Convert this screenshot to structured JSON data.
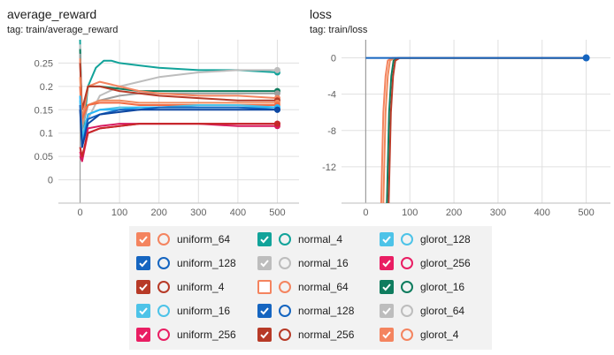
{
  "panels": {
    "reward": {
      "title": "average_reward",
      "tag": "tag: train/average_reward"
    },
    "loss": {
      "title": "loss",
      "tag": "tag: train/loss"
    }
  },
  "chart_data": [
    {
      "type": "line",
      "title": "average_reward",
      "subtitle": "tag: train/average_reward",
      "xlim": [
        -55,
        555
      ],
      "ylim": [
        -0.05,
        0.3
      ],
      "xticks": [
        0,
        100,
        200,
        300,
        400,
        500
      ],
      "yticks": [
        0,
        0.05,
        0.1,
        0.15,
        0.2,
        0.25
      ],
      "ytick_labels": [
        "0",
        "0.05",
        "0.1",
        "0.15",
        "0.2",
        "0.25"
      ],
      "grid": true,
      "series": [
        {
          "name": "normal_4",
          "color": "#12a39a",
          "x": [
            0,
            5,
            20,
            40,
            60,
            80,
            100,
            150,
            200,
            300,
            400,
            500
          ],
          "y": [
            0.3,
            0.08,
            0.2,
            0.24,
            0.255,
            0.255,
            0.25,
            0.245,
            0.24,
            0.235,
            0.235,
            0.23
          ]
        },
        {
          "name": "normal_16",
          "color": "#bdbdbd",
          "x": [
            0,
            5,
            20,
            50,
            100,
            150,
            200,
            300,
            400,
            500
          ],
          "y": [
            0.29,
            0.1,
            0.13,
            0.18,
            0.2,
            0.21,
            0.22,
            0.23,
            0.235,
            0.235
          ]
        },
        {
          "name": "glorot_16",
          "color": "#0f7c5e",
          "x": [
            0,
            5,
            20,
            50,
            100,
            150,
            200,
            300,
            400,
            500
          ],
          "y": [
            0.28,
            0.12,
            0.2,
            0.2,
            0.195,
            0.19,
            0.19,
            0.19,
            0.19,
            0.19
          ]
        },
        {
          "name": "glorot_64",
          "color": "#9e9e9e",
          "x": [
            0,
            5,
            20,
            50,
            100,
            150,
            200,
            300,
            400,
            500
          ],
          "y": [
            0.27,
            0.11,
            0.16,
            0.17,
            0.18,
            0.185,
            0.185,
            0.185,
            0.185,
            0.185
          ]
        },
        {
          "name": "uniform_64",
          "color": "#f4845f",
          "x": [
            0,
            5,
            20,
            50,
            100,
            150,
            200,
            300,
            400,
            500
          ],
          "y": [
            0.26,
            0.12,
            0.2,
            0.21,
            0.2,
            0.19,
            0.185,
            0.18,
            0.18,
            0.175
          ]
        },
        {
          "name": "uniform_4",
          "color": "#b73a27",
          "x": [
            0,
            5,
            20,
            50,
            100,
            150,
            200,
            300,
            400,
            500
          ],
          "y": [
            0.25,
            0.15,
            0.2,
            0.2,
            0.19,
            0.185,
            0.18,
            0.175,
            0.17,
            0.17
          ]
        },
        {
          "name": "normal_64",
          "color": "#f08a5d",
          "x": [
            0,
            5,
            20,
            50,
            100,
            150,
            200,
            300,
            400,
            500
          ],
          "y": [
            0.22,
            0.14,
            0.16,
            0.17,
            0.17,
            0.165,
            0.165,
            0.165,
            0.165,
            0.165
          ]
        },
        {
          "name": "glorot_4",
          "color": "#f26b43",
          "x": [
            0,
            5,
            20,
            50,
            100,
            150,
            200,
            300,
            400,
            500
          ],
          "y": [
            0.2,
            0.13,
            0.16,
            0.165,
            0.165,
            0.16,
            0.16,
            0.16,
            0.16,
            0.16
          ]
        },
        {
          "name": "uniform_16",
          "color": "#4dc3e8",
          "x": [
            0,
            5,
            20,
            50,
            100,
            150,
            200,
            300,
            400,
            500
          ],
          "y": [
            0.17,
            0.09,
            0.14,
            0.15,
            0.155,
            0.155,
            0.155,
            0.16,
            0.16,
            0.155
          ]
        },
        {
          "name": "glorot_128",
          "color": "#29b6f6",
          "x": [
            0,
            5,
            20,
            50,
            100,
            150,
            200,
            300,
            400,
            500
          ],
          "y": [
            0.18,
            0.08,
            0.14,
            0.15,
            0.15,
            0.155,
            0.155,
            0.155,
            0.155,
            0.155
          ]
        },
        {
          "name": "uniform_128",
          "color": "#1565c0",
          "x": [
            0,
            5,
            20,
            50,
            100,
            150,
            200,
            300,
            400,
            500
          ],
          "y": [
            0.16,
            0.07,
            0.13,
            0.14,
            0.15,
            0.15,
            0.155,
            0.155,
            0.155,
            0.15
          ]
        },
        {
          "name": "normal_128",
          "color": "#0d47a1",
          "x": [
            0,
            5,
            20,
            50,
            100,
            150,
            200,
            300,
            400,
            500
          ],
          "y": [
            0.15,
            0.07,
            0.12,
            0.14,
            0.145,
            0.15,
            0.15,
            0.15,
            0.15,
            0.15
          ]
        },
        {
          "name": "uniform_256",
          "color": "#e91e63",
          "x": [
            0,
            5,
            20,
            50,
            100,
            150,
            200,
            300,
            400,
            500
          ],
          "y": [
            0.06,
            0.04,
            0.1,
            0.11,
            0.115,
            0.12,
            0.12,
            0.12,
            0.12,
            0.12
          ]
        },
        {
          "name": "glorot_256",
          "color": "#d81b60",
          "x": [
            0,
            5,
            20,
            50,
            100,
            150,
            200,
            300,
            400,
            500
          ],
          "y": [
            0.05,
            0.04,
            0.11,
            0.115,
            0.12,
            0.12,
            0.12,
            0.12,
            0.115,
            0.115
          ]
        },
        {
          "name": "normal_256",
          "color": "#c62828",
          "x": [
            0,
            5,
            20,
            50,
            100,
            150,
            200,
            300,
            400,
            500
          ],
          "y": [
            0.07,
            0.05,
            0.1,
            0.11,
            0.115,
            0.12,
            0.12,
            0.12,
            0.12,
            0.12
          ]
        }
      ]
    },
    {
      "type": "line",
      "title": "loss",
      "subtitle": "tag: train/loss",
      "xlim": [
        -55,
        555
      ],
      "ylim": [
        -16,
        2
      ],
      "xticks": [
        0,
        100,
        200,
        300,
        400,
        500
      ],
      "yticks": [
        0,
        -4,
        -8,
        -12
      ],
      "ytick_labels": [
        "0",
        "-4",
        "-8",
        "-12"
      ],
      "grid": true,
      "series": [
        {
          "name": "glorot_4",
          "color": "#f4845f",
          "x": [
            35,
            37,
            40,
            45,
            50,
            60,
            500
          ],
          "y": [
            -16,
            -12,
            -6,
            -2,
            -0.3,
            0,
            0
          ]
        },
        {
          "name": "uniform_64",
          "color": "#f08a5d",
          "x": [
            40,
            42,
            45,
            50,
            55,
            65,
            500
          ],
          "y": [
            -16,
            -12,
            -6,
            -2,
            -0.3,
            0,
            0
          ]
        },
        {
          "name": "normal_16",
          "color": "#0f7c5e",
          "x": [
            48,
            50,
            53,
            58,
            63,
            73,
            500
          ],
          "y": [
            -16,
            -12,
            -6,
            -2,
            -0.3,
            0,
            0
          ]
        },
        {
          "name": "normal_256",
          "color": "#b73a27",
          "x": [
            52,
            54,
            57,
            62,
            67,
            77,
            500
          ],
          "y": [
            -16,
            -12,
            -6,
            -2,
            -0.3,
            0,
            0
          ]
        },
        {
          "name": "normal_128",
          "color": "#1565c0",
          "x": [
            0,
            500
          ],
          "y": [
            0,
            0
          ]
        }
      ],
      "marker": {
        "x": 500,
        "y": 0,
        "color": "#1565c0"
      }
    }
  ],
  "legend": {
    "items": [
      {
        "label": "uniform_64",
        "color": "#f4845f",
        "checked": true
      },
      {
        "label": "uniform_128",
        "color": "#1565c0",
        "checked": true
      },
      {
        "label": "uniform_4",
        "color": "#b73a27",
        "checked": true
      },
      {
        "label": "uniform_16",
        "color": "#4dc3e8",
        "checked": true
      },
      {
        "label": "uniform_256",
        "color": "#e91e63",
        "checked": true
      },
      {
        "label": "normal_4",
        "color": "#12a39a",
        "checked": true
      },
      {
        "label": "normal_16",
        "color": "#bdbdbd",
        "checked": true
      },
      {
        "label": "normal_64",
        "color": "#f4845f",
        "checked": false
      },
      {
        "label": "normal_128",
        "color": "#1565c0",
        "checked": true
      },
      {
        "label": "normal_256",
        "color": "#b73a27",
        "checked": true
      },
      {
        "label": "glorot_128",
        "color": "#4dc3e8",
        "checked": true
      },
      {
        "label": "glorot_256",
        "color": "#e91e63",
        "checked": true
      },
      {
        "label": "glorot_16",
        "color": "#0f7c5e",
        "checked": true
      },
      {
        "label": "glorot_64",
        "color": "#bdbdbd",
        "checked": true
      },
      {
        "label": "glorot_4",
        "color": "#f4845f",
        "checked": true
      }
    ]
  }
}
